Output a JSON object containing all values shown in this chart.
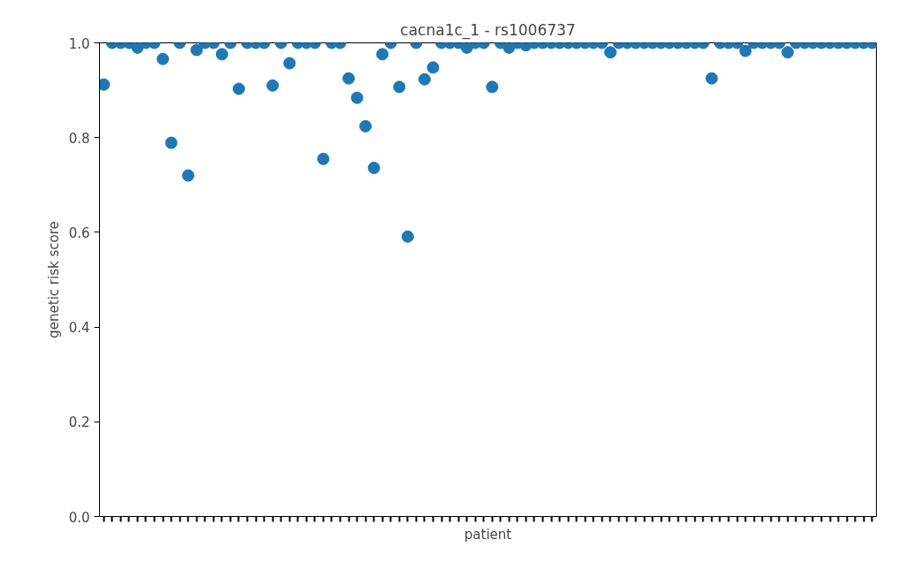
{
  "chart_data": {
    "type": "scatter",
    "title": "cacna1c_1 - rs1006737",
    "xlabel": "patient",
    "ylabel": "genetic risk score",
    "categories": [
      null,
      null,
      null,
      null,
      null,
      null,
      null,
      null,
      null,
      null,
      null,
      null,
      null,
      null,
      null,
      null,
      null,
      null,
      null,
      null,
      null,
      null,
      null,
      null,
      null,
      null,
      null,
      null,
      null,
      null,
      null,
      null,
      null,
      null,
      null,
      null,
      null,
      null,
      null,
      null,
      null,
      null,
      null,
      null,
      null,
      null,
      null,
      null,
      null,
      null,
      null,
      null,
      null,
      null,
      null,
      null,
      null,
      null,
      null,
      null,
      null,
      null,
      null,
      null,
      null,
      null,
      null,
      null,
      null,
      null,
      null,
      null,
      null,
      null,
      null,
      null,
      null,
      null,
      null,
      null,
      null,
      null,
      null,
      null,
      null,
      null,
      null,
      null,
      null,
      null,
      null,
      null
    ],
    "series": [
      {
        "color": "#1f77b4",
        "values": [
          0.912,
          1,
          1,
          1,
          0.99,
          1,
          1,
          0.966,
          0.789,
          1,
          0.72,
          0.985,
          1,
          1,
          0.976,
          1,
          0.903,
          1,
          1,
          1,
          0.91,
          1,
          0.957,
          1,
          1,
          1,
          0.755,
          1,
          1,
          0.925,
          0.884,
          0.824,
          0.736,
          0.976,
          1,
          0.907,
          0.591,
          1,
          0.923,
          0.948,
          1,
          1,
          1,
          0.99,
          1,
          1,
          0.907,
          1,
          0.99,
          1,
          0.995,
          1,
          1,
          1,
          1,
          1,
          1,
          1,
          1,
          1,
          0.98,
          1,
          1,
          1,
          1,
          1,
          1,
          1,
          1,
          1,
          1,
          1,
          0.925,
          1,
          1,
          1,
          0.983,
          1,
          1,
          1,
          1,
          0.98,
          1,
          1,
          1,
          1,
          1,
          1,
          1,
          1,
          1,
          1
        ]
      }
    ],
    "ylim": [
      0,
      1
    ],
    "yticks": [
      {
        "value": 0,
        "label": "0.0"
      },
      {
        "value": 0.2,
        "label": "0.2"
      },
      {
        "value": 0.4,
        "label": "0.4"
      },
      {
        "value": 0.6,
        "label": "0.6"
      },
      {
        "value": 0.8,
        "label": "0.8"
      },
      {
        "value": 1,
        "label": "1.0"
      }
    ],
    "tick_labels": "y",
    "grid": false,
    "marker": "circle"
  }
}
